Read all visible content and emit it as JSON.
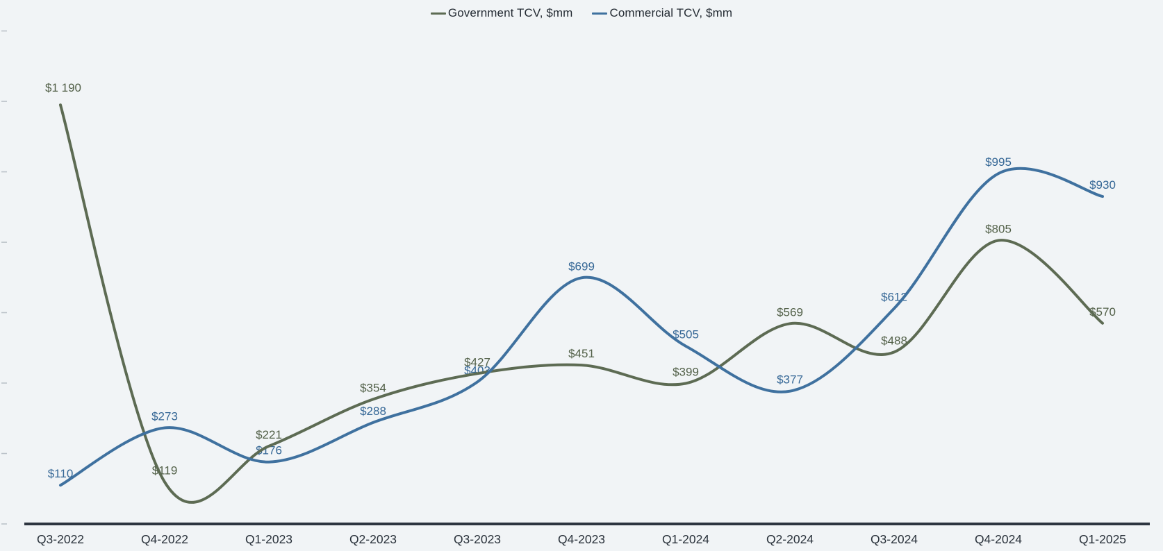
{
  "legend": {
    "items": [
      {
        "label": "Government TCV, $mm"
      },
      {
        "label": "Commercial TCV, $mm"
      }
    ]
  },
  "chart_data": {
    "type": "line",
    "smoothing": "spline",
    "title": "",
    "xlabel": "",
    "ylabel": "",
    "categories": [
      "Q3-2022",
      "Q4-2022",
      "Q1-2023",
      "Q2-2023",
      "Q3-2023",
      "Q4-2023",
      "Q1-2024",
      "Q2-2024",
      "Q3-2024",
      "Q4-2024",
      "Q1-2025"
    ],
    "series": [
      {
        "name": "Government TCV, $mm",
        "color": "#5D6B53",
        "label_color": "#526048",
        "values": [
          1190,
          119,
          221,
          354,
          427,
          451,
          399,
          569,
          488,
          805,
          570
        ],
        "point_labels": [
          "$1 190",
          "$119",
          "$221",
          "$354",
          "$427",
          "$451",
          "$399",
          "$569",
          "$488",
          "$805",
          "$570"
        ]
      },
      {
        "name": "Commercial TCV, $mm",
        "color": "#3F719F",
        "label_color": "#356796",
        "values": [
          110,
          273,
          176,
          288,
          403,
          699,
          505,
          377,
          612,
          995,
          930
        ],
        "point_labels": [
          "$110",
          "$273",
          "$176",
          "$288",
          "$403",
          "$699",
          "$505",
          "$377",
          "$612",
          "$995",
          "$930"
        ]
      }
    ],
    "y_axis": {
      "min": 0,
      "max": 1400,
      "tick_step": 200,
      "tick_values": [
        0,
        200,
        400,
        600,
        800,
        1000,
        1200,
        1400
      ],
      "tick_labels_visible": false
    },
    "grid": false,
    "legend_position": "top-center",
    "data_labels_visible": true
  },
  "colors": {
    "background": "#F1F4F6",
    "axis_line": "#2D3540",
    "x_tick_label": "#2A323B",
    "y_tick_mark": "#BCC3CA",
    "legend_text": "#242B33"
  }
}
